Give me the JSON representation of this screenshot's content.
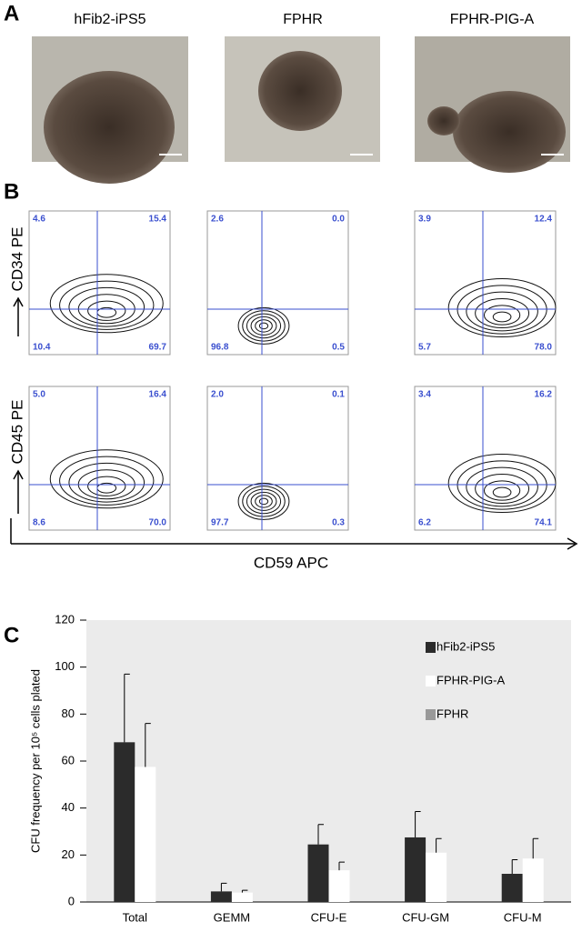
{
  "panel_a": {
    "label": "A",
    "titles": [
      "hFib2-iPS5",
      "FPHR",
      "FPHR-PIG-A"
    ]
  },
  "panel_b": {
    "label": "B",
    "y_labels": [
      "CD34 PE",
      "CD45 PE"
    ],
    "x_label": "CD59 APC",
    "plots": [
      {
        "quadrants": [
          "4.6",
          "15.4",
          "10.4",
          "69.7"
        ]
      },
      {
        "quadrants": [
          "2.6",
          "0.0",
          "96.8",
          "0.5"
        ]
      },
      {
        "quadrants": [
          "3.9",
          "12.4",
          "5.7",
          "78.0"
        ]
      },
      {
        "quadrants": [
          "5.0",
          "16.4",
          "8.6",
          "70.0"
        ]
      },
      {
        "quadrants": [
          "2.0",
          "0.1",
          "97.7",
          "0.3"
        ]
      },
      {
        "quadrants": [
          "3.4",
          "16.2",
          "6.2",
          "74.1"
        ]
      }
    ]
  },
  "chart_data": {
    "type": "bar",
    "label": "C",
    "y_label": "CFU frequency per 10⁵ cells plated",
    "categories": [
      "Total",
      "GEMM",
      "CFU-E",
      "CFU-GM",
      "CFU-M"
    ],
    "series": [
      {
        "name": "hFib2-iPS5",
        "color": "#2b2b2b",
        "values": [
          68,
          4.5,
          24.5,
          27.5,
          12
        ],
        "errors": [
          29,
          3.5,
          8.5,
          11,
          6
        ]
      },
      {
        "name": "FPHR-PIG-A",
        "color": "#ffffff",
        "values": [
          57.5,
          4,
          13.5,
          21,
          18.5
        ],
        "errors": [
          18.5,
          1,
          3.5,
          6,
          8.5
        ]
      },
      {
        "name": "FPHR",
        "color": "#999999",
        "values": [
          0,
          0,
          0,
          0,
          0
        ]
      }
    ],
    "ylim": [
      0,
      120
    ],
    "yticks": [
      0,
      20,
      40,
      60,
      80,
      100,
      120
    ]
  }
}
